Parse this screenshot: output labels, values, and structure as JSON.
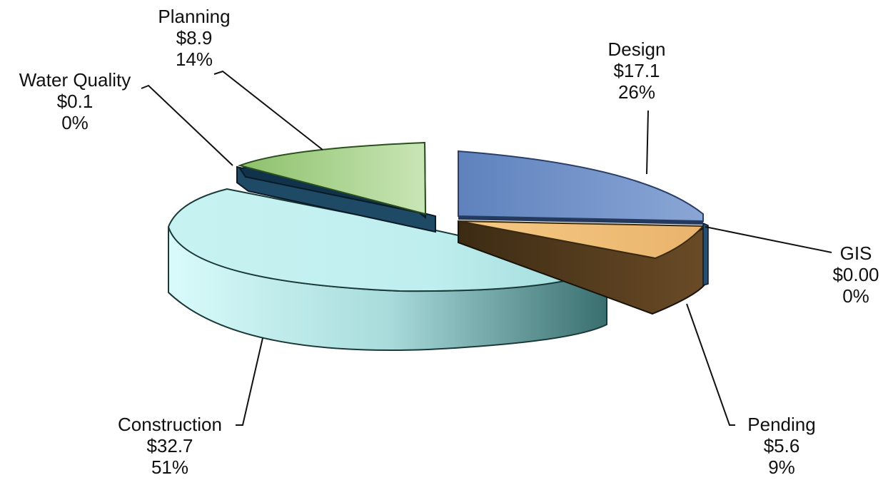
{
  "chart_data": {
    "type": "pie",
    "style": "3d-exploded",
    "slices": [
      {
        "category": "Design",
        "value": "$17.1",
        "percent": "26%",
        "amount": 17.1,
        "color": "#6f8fc6"
      },
      {
        "category": "GIS",
        "value": "$0.00",
        "percent": "0%",
        "amount": 0.0,
        "color": "#2a4f6e"
      },
      {
        "category": "Pending",
        "value": "$5.6",
        "percent": "9%",
        "amount": 5.6,
        "color": "#f0c27c"
      },
      {
        "category": "Construction",
        "value": "$32.7",
        "percent": "51%",
        "amount": 32.7,
        "color": "#c9f3f3"
      },
      {
        "category": "Water Quality",
        "value": "$0.1",
        "percent": "0%",
        "amount": 0.1,
        "color": "#1f4a66"
      },
      {
        "category": "Planning",
        "value": "$8.9",
        "percent": "14%",
        "amount": 8.9,
        "color": "#a9d08e"
      }
    ],
    "legend": "none",
    "data_labels": "outside-with-leader-lines"
  }
}
